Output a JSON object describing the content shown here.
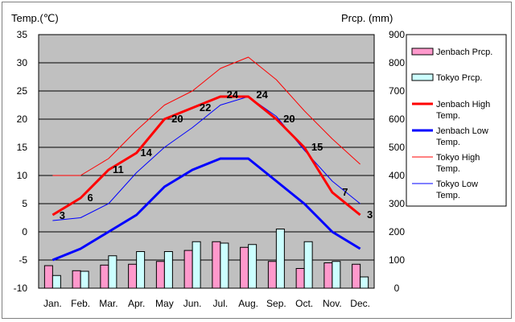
{
  "chart_data": {
    "type": "bar",
    "left_axis_title": "Temp.(℃)",
    "right_axis_title": "Prcp. (mm)",
    "categories": [
      "Jan.",
      "Feb.",
      "Mar.",
      "Apr.",
      "May",
      "Jun.",
      "Jul.",
      "Aug.",
      "Sep.",
      "Oct.",
      "Nov.",
      "Dec."
    ],
    "temp_ylim": [
      -10,
      35
    ],
    "temp_ticks": [
      35,
      30,
      25,
      20,
      15,
      10,
      5,
      0,
      -5,
      -10
    ],
    "prcp_ylim": [
      0,
      900
    ],
    "prcp_ticks": [
      900,
      800,
      700,
      600,
      500,
      400,
      300,
      200,
      100,
      0
    ],
    "grid": true,
    "legend_position": "right",
    "colors": {
      "plot_background": "#c0c0c0",
      "jenbach_prcp": "#ff99cc",
      "tokyo_prcp": "#ccffff",
      "jenbach_high": "#ff0000",
      "jenbach_low": "#0000ff",
      "tokyo_high": "#ff0000",
      "tokyo_low": "#0000ff"
    },
    "bar_series": [
      {
        "name": "Jenbach Prcp.",
        "axis": "prcp",
        "values": [
          80,
          62,
          82,
          85,
          95,
          134,
          165,
          145,
          95,
          70,
          90,
          85
        ]
      },
      {
        "name": "Tokyo Prcp.",
        "axis": "prcp",
        "values": [
          45,
          60,
          115,
          130,
          130,
          165,
          160,
          155,
          210,
          165,
          95,
          40
        ]
      }
    ],
    "line_series": [
      {
        "name": "Jenbach High Temp.",
        "axis": "temp",
        "values": [
          3,
          6,
          11,
          14,
          20,
          22,
          24,
          24,
          20,
          15,
          7,
          3
        ],
        "labels": [
          "3",
          "6",
          "11",
          "14",
          "20",
          "22",
          "24",
          "24",
          "20",
          "15",
          "7",
          "3"
        ]
      },
      {
        "name": "Jenbach Low Temp.",
        "axis": "temp",
        "values": [
          -5,
          -3,
          0,
          3,
          8,
          11,
          13,
          13,
          9,
          5,
          0,
          -3
        ]
      },
      {
        "name": "Tokyo High Temp.",
        "axis": "temp",
        "values": [
          10,
          10,
          13,
          18,
          22.5,
          25,
          29,
          31,
          27,
          21.5,
          16.5,
          12
        ]
      },
      {
        "name": "Tokyo Low Temp.",
        "axis": "temp",
        "values": [
          2,
          2.5,
          5,
          10.5,
          15,
          18.5,
          22.5,
          24,
          20.5,
          14.5,
          9,
          5
        ]
      }
    ]
  }
}
